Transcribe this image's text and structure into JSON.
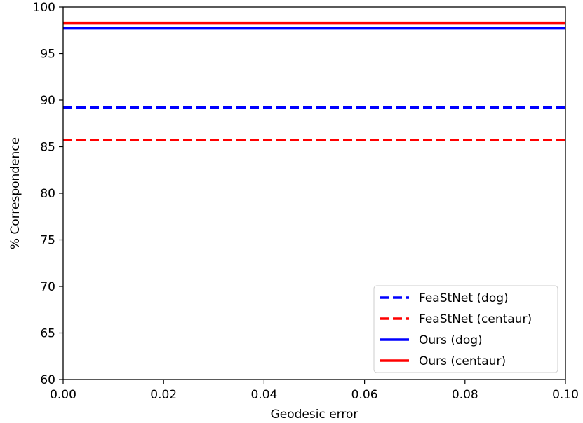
{
  "chart_data": {
    "type": "line",
    "title": "",
    "xlabel": "Geodesic error",
    "ylabel": "% Correspondence",
    "xlim": [
      0.0,
      0.1
    ],
    "ylim": [
      60,
      100
    ],
    "xticks": [
      0.0,
      0.02,
      0.04,
      0.06,
      0.08,
      0.1
    ],
    "xtick_labels": [
      "0.00",
      "0.02",
      "0.04",
      "0.06",
      "0.08",
      "0.10"
    ],
    "yticks": [
      60,
      65,
      70,
      75,
      80,
      85,
      90,
      95,
      100
    ],
    "ytick_labels": [
      "60",
      "65",
      "70",
      "75",
      "80",
      "85",
      "90",
      "95",
      "100"
    ],
    "grid": false,
    "legend_position": "lower-right",
    "series": [
      {
        "name": "FeaStNet (dog)",
        "color": "#0000ff",
        "style": "dashed",
        "x": [
          0.0,
          0.1
        ],
        "y": [
          89.2,
          89.2
        ]
      },
      {
        "name": "FeaStNet (centaur)",
        "color": "#ff0000",
        "style": "dashed",
        "x": [
          0.0,
          0.1
        ],
        "y": [
          85.7,
          85.7
        ]
      },
      {
        "name": "Ours (dog)",
        "color": "#0000ff",
        "style": "solid",
        "x": [
          0.0,
          0.1
        ],
        "y": [
          97.7,
          97.7
        ]
      },
      {
        "name": "Ours (centaur)",
        "color": "#ff0000",
        "style": "solid",
        "x": [
          0.0,
          0.1
        ],
        "y": [
          98.3,
          98.3
        ]
      }
    ]
  }
}
